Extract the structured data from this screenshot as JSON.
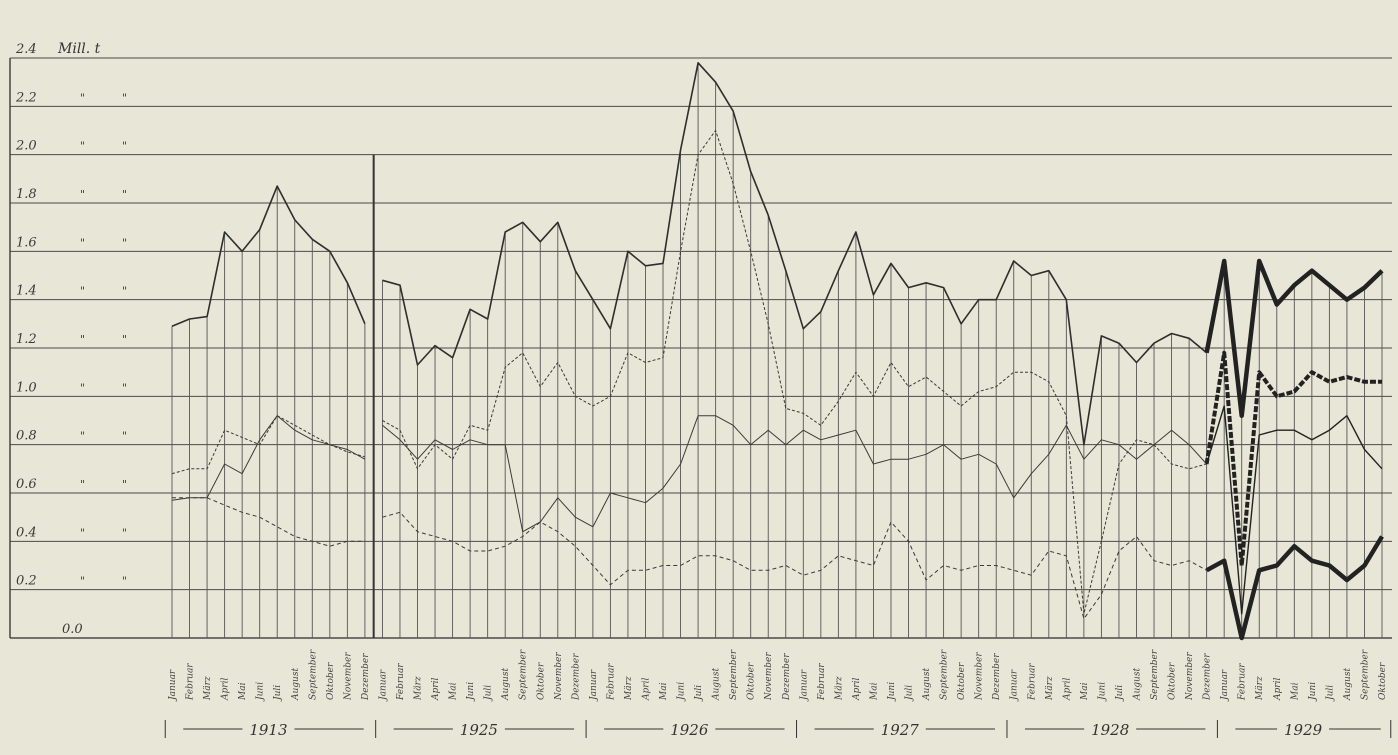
{
  "chart_data": {
    "type": "line",
    "ylabel": "Mill. t",
    "ylim": [
      0,
      2.4
    ],
    "yticks": [
      "0.0",
      "0.2",
      "0.4",
      "0.6",
      "0.8",
      "1.0",
      "1.2",
      "1.4",
      "1.6",
      "1.8",
      "2.0",
      "2.2",
      "2.4"
    ],
    "ditto": "\"",
    "grid": true,
    "months": [
      "Januar",
      "Februar",
      "März",
      "April",
      "Mai",
      "Juni",
      "Juli",
      "August",
      "September",
      "Oktober",
      "November",
      "Dezember"
    ],
    "year_labels": [
      "1913",
      "1925",
      "1926",
      "1927",
      "1928",
      "1929"
    ],
    "series": [
      {
        "values": [
          1.29,
          1.32,
          1.33,
          1.68,
          1.6,
          1.69,
          1.87,
          1.73,
          1.65,
          1.6,
          1.47,
          1.3,
          1.48,
          1.46,
          1.13,
          1.21,
          1.16,
          1.36,
          1.32,
          1.68,
          1.72,
          1.64,
          1.72,
          1.52,
          1.4,
          1.28,
          1.6,
          1.54,
          1.55,
          2.02,
          2.38,
          2.3,
          2.18,
          1.93,
          1.75,
          1.52,
          1.28,
          1.35,
          1.52,
          1.68,
          1.42,
          1.55,
          1.45,
          1.47,
          1.45,
          1.3,
          1.4,
          1.4,
          1.56,
          1.5,
          1.52,
          1.4,
          0.8,
          1.25,
          1.22,
          1.14,
          1.22,
          1.26,
          1.24,
          1.18,
          1.56,
          0.92,
          1.56,
          1.38,
          1.46,
          1.52,
          1.46,
          1.4,
          1.45,
          1.52
        ]
      },
      {
        "values": [
          0.68,
          0.7,
          0.7,
          0.86,
          0.83,
          0.8,
          0.92,
          0.88,
          0.84,
          0.8,
          0.77,
          0.75,
          0.9,
          0.86,
          0.7,
          0.8,
          0.74,
          0.88,
          0.86,
          1.12,
          1.18,
          1.04,
          1.14,
          1.0,
          0.96,
          1.0,
          1.18,
          1.14,
          1.16,
          1.6,
          2.0,
          2.1,
          1.88,
          1.6,
          1.3,
          0.95,
          0.93,
          0.88,
          0.98,
          1.1,
          1.0,
          1.14,
          1.04,
          1.08,
          1.02,
          0.96,
          1.02,
          1.04,
          1.1,
          1.1,
          1.06,
          0.92,
          0.1,
          0.4,
          0.72,
          0.82,
          0.8,
          0.72,
          0.7,
          0.72,
          1.18,
          0.3,
          1.1,
          1.0,
          1.02,
          1.1,
          1.06,
          1.08,
          1.06,
          1.06
        ]
      },
      {
        "values": [
          0.57,
          0.58,
          0.58,
          0.72,
          0.68,
          0.82,
          0.92,
          0.86,
          0.82,
          0.8,
          0.78,
          0.74,
          0.88,
          0.82,
          0.74,
          0.82,
          0.78,
          0.82,
          0.8,
          0.8,
          0.44,
          0.48,
          0.58,
          0.5,
          0.46,
          0.6,
          0.58,
          0.56,
          0.62,
          0.72,
          0.92,
          0.92,
          0.88,
          0.8,
          0.86,
          0.8,
          0.86,
          0.82,
          0.84,
          0.86,
          0.72,
          0.74,
          0.74,
          0.76,
          0.8,
          0.74,
          0.76,
          0.72,
          0.58,
          0.68,
          0.76,
          0.88,
          0.74,
          0.82,
          0.8,
          0.74,
          0.8,
          0.86,
          0.8,
          0.72,
          0.96,
          0.1,
          0.84,
          0.86,
          0.86,
          0.82,
          0.86,
          0.92,
          0.78,
          0.7
        ]
      },
      {
        "values": [
          0.58,
          0.58,
          0.58,
          0.55,
          0.52,
          0.5,
          0.46,
          0.42,
          0.4,
          0.38,
          0.4,
          0.4,
          0.5,
          0.52,
          0.44,
          0.42,
          0.4,
          0.36,
          0.36,
          0.38,
          0.42,
          0.48,
          0.44,
          0.38,
          0.3,
          0.22,
          0.28,
          0.28,
          0.3,
          0.3,
          0.34,
          0.34,
          0.32,
          0.28,
          0.28,
          0.3,
          0.26,
          0.28,
          0.34,
          0.32,
          0.3,
          0.48,
          0.4,
          0.24,
          0.3,
          0.28,
          0.3,
          0.3,
          0.28,
          0.26,
          0.36,
          0.34,
          0.08,
          0.18,
          0.36,
          0.42,
          0.32,
          0.3,
          0.32,
          0.28,
          0.32,
          0.0,
          0.28,
          0.3,
          0.38,
          0.32,
          0.3,
          0.24,
          0.3,
          0.42
        ]
      }
    ]
  }
}
